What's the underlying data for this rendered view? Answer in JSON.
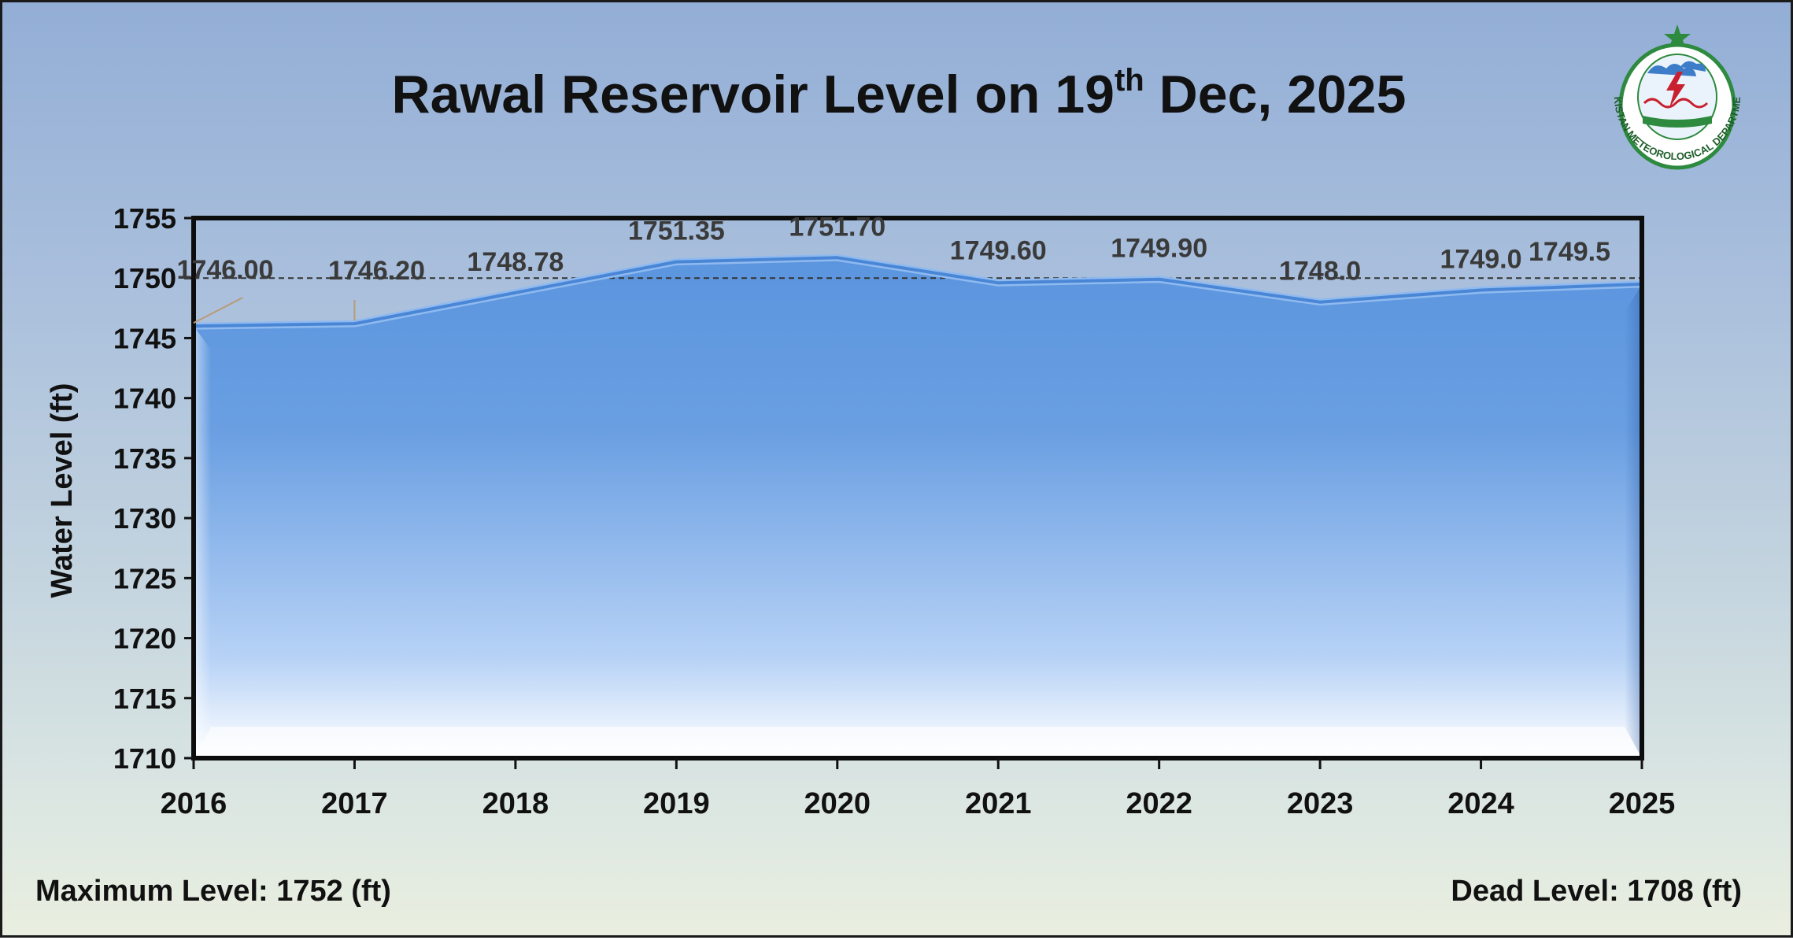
{
  "page": {
    "title_main": "Rawal Reservoir Level on 19",
    "title_sup": "th",
    "title_end": " Dec, 2025",
    "footer_left": "Maximum Level: 1752 (ft)",
    "footer_right": "Dead Level: 1708 (ft)",
    "logo_text": "PAKISTAN METEOROLOGICAL DEPARTMENT"
  },
  "chart_data": {
    "type": "area",
    "title": "Rawal Reservoir Level on 19th Dec, 2025",
    "xlabel": "",
    "ylabel": "Water Level (ft)",
    "categories": [
      "2016",
      "2017",
      "2018",
      "2019",
      "2020",
      "2021",
      "2022",
      "2023",
      "2024",
      "2025"
    ],
    "series": [
      {
        "values": [
          1746.0,
          1746.2,
          1748.78,
          1751.35,
          1751.7,
          1749.6,
          1749.9,
          1748.0,
          1749.0,
          1749.5
        ],
        "labels": [
          "1746.00",
          "1746.20",
          "1748.78",
          "1751.35",
          "1751.70",
          "1749.60",
          "1749.90",
          "1748.0",
          "1749.0",
          "1749.5"
        ]
      }
    ],
    "ylim": [
      1710,
      1755
    ],
    "yticks": [
      1710,
      1715,
      1720,
      1725,
      1730,
      1735,
      1740,
      1745,
      1750,
      1755
    ],
    "reference_line": 1750,
    "grid": false,
    "legend": "none",
    "colors": {
      "area_top": "#5b95de",
      "area_bottom": "#ffffff",
      "line": "#4a86d6",
      "reference": "#333333"
    }
  }
}
